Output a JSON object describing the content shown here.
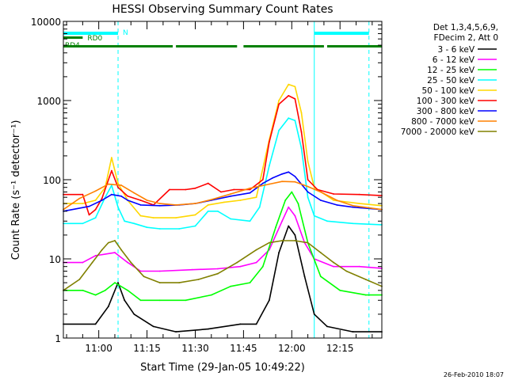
{
  "chart_data": {
    "type": "line",
    "title": "HESSI Observing Summary Count Rates",
    "xlabel": "Start Time (29-Jan-05 10:49:22)",
    "ylabel": "Count Rate (s⁻¹ detector⁻¹)",
    "y_scale": "log",
    "ylim": [
      1,
      10000
    ],
    "xlim_minutes_after_1049": [
      0,
      99
    ],
    "x_ticks": [
      {
        "label": "11:00",
        "minutes": 11
      },
      {
        "label": "11:15",
        "minutes": 26
      },
      {
        "label": "11:30",
        "minutes": 41
      },
      {
        "label": "11:45",
        "minutes": 56
      },
      {
        "label": "12:00",
        "minutes": 71
      },
      {
        "label": "12:15",
        "minutes": 86
      }
    ],
    "y_ticks": [
      {
        "label": "1",
        "value": 1
      },
      {
        "label": "10",
        "value": 10
      },
      {
        "label": "100",
        "value": 100
      },
      {
        "label": "1000",
        "value": 1000
      },
      {
        "label": "10000",
        "value": 10000
      }
    ],
    "legend": {
      "placement": "right",
      "header": [
        "Det 1,3,4,5,6,9,",
        "FDecim 2, Att 0"
      ]
    },
    "series": [
      {
        "name": "3 - 6 keV",
        "color": "#000000",
        "points": [
          [
            0,
            1.5
          ],
          [
            10,
            1.5
          ],
          [
            14,
            2.5
          ],
          [
            17,
            5
          ],
          [
            19,
            3
          ],
          [
            22,
            2
          ],
          [
            28,
            1.4
          ],
          [
            35,
            1.2
          ],
          [
            45,
            1.3
          ],
          [
            55,
            1.5
          ],
          [
            60,
            1.5
          ],
          [
            64,
            3
          ],
          [
            67,
            12
          ],
          [
            70,
            26
          ],
          [
            72,
            20
          ],
          [
            75,
            6
          ],
          [
            78,
            2
          ],
          [
            82,
            1.4
          ],
          [
            90,
            1.2
          ],
          [
            99,
            1.2
          ]
        ]
      },
      {
        "name": "6 - 12 keV",
        "color": "#ff00ff",
        "points": [
          [
            0,
            9
          ],
          [
            6,
            9
          ],
          [
            10,
            11
          ],
          [
            16,
            12
          ],
          [
            20,
            9
          ],
          [
            24,
            7
          ],
          [
            30,
            7
          ],
          [
            40,
            7.3
          ],
          [
            48,
            7.5
          ],
          [
            55,
            8
          ],
          [
            60,
            9
          ],
          [
            64,
            13
          ],
          [
            68,
            30
          ],
          [
            70,
            45
          ],
          [
            72,
            35
          ],
          [
            75,
            16
          ],
          [
            78,
            10
          ],
          [
            84,
            8
          ],
          [
            92,
            8
          ],
          [
            99,
            7.6
          ]
        ]
      },
      {
        "name": "12 - 25 keV",
        "color": "#00ff00",
        "points": [
          [
            0,
            4
          ],
          [
            6,
            4
          ],
          [
            10,
            3.5
          ],
          [
            13,
            4
          ],
          [
            16,
            5
          ],
          [
            20,
            4
          ],
          [
            24,
            3
          ],
          [
            30,
            3
          ],
          [
            38,
            3
          ],
          [
            46,
            3.5
          ],
          [
            52,
            4.5
          ],
          [
            58,
            5
          ],
          [
            62,
            8
          ],
          [
            66,
            25
          ],
          [
            69,
            55
          ],
          [
            71,
            70
          ],
          [
            73,
            50
          ],
          [
            76,
            16
          ],
          [
            80,
            6
          ],
          [
            86,
            4
          ],
          [
            94,
            3.5
          ],
          [
            99,
            3.5
          ]
        ]
      },
      {
        "name": "25 - 50 keV",
        "color": "#00ffff",
        "points": [
          [
            0,
            28
          ],
          [
            6,
            28
          ],
          [
            10,
            33
          ],
          [
            13,
            60
          ],
          [
            15,
            85
          ],
          [
            17,
            45
          ],
          [
            19,
            30
          ],
          [
            22,
            28
          ],
          [
            26,
            25
          ],
          [
            30,
            24
          ],
          [
            36,
            24
          ],
          [
            41,
            26
          ],
          [
            45,
            40
          ],
          [
            48,
            40
          ],
          [
            52,
            32
          ],
          [
            58,
            30
          ],
          [
            61,
            45
          ],
          [
            64,
            150
          ],
          [
            67,
            420
          ],
          [
            70,
            600
          ],
          [
            72,
            560
          ],
          [
            74,
            250
          ],
          [
            76,
            60
          ],
          [
            78,
            35
          ],
          [
            82,
            30
          ],
          [
            90,
            28
          ],
          [
            99,
            27
          ]
        ]
      },
      {
        "name": "50 - 100 keV",
        "color": "#ffd700",
        "points": [
          [
            0,
            50
          ],
          [
            6,
            50
          ],
          [
            10,
            55
          ],
          [
            13,
            80
          ],
          [
            15,
            190
          ],
          [
            17,
            90
          ],
          [
            20,
            55
          ],
          [
            24,
            35
          ],
          [
            28,
            33
          ],
          [
            35,
            33
          ],
          [
            41,
            36
          ],
          [
            45,
            48
          ],
          [
            50,
            52
          ],
          [
            55,
            55
          ],
          [
            60,
            60
          ],
          [
            64,
            320
          ],
          [
            67,
            1000
          ],
          [
            70,
            1600
          ],
          [
            72,
            1500
          ],
          [
            74,
            700
          ],
          [
            76,
            170
          ],
          [
            78,
            80
          ],
          [
            84,
            55
          ],
          [
            92,
            50
          ],
          [
            99,
            47
          ]
        ]
      },
      {
        "name": "100 - 300 keV",
        "color": "#ff0000",
        "points": [
          [
            0,
            65
          ],
          [
            6,
            65
          ],
          [
            8,
            36
          ],
          [
            10,
            42
          ],
          [
            12,
            58
          ],
          [
            15,
            130
          ],
          [
            17,
            80
          ],
          [
            20,
            62
          ],
          [
            24,
            55
          ],
          [
            28,
            48
          ],
          [
            33,
            75
          ],
          [
            38,
            75
          ],
          [
            41,
            78
          ],
          [
            45,
            90
          ],
          [
            49,
            70
          ],
          [
            53,
            75
          ],
          [
            58,
            75
          ],
          [
            62,
            100
          ],
          [
            64,
            300
          ],
          [
            67,
            900
          ],
          [
            70,
            1150
          ],
          [
            72,
            1050
          ],
          [
            74,
            400
          ],
          [
            76,
            100
          ],
          [
            79,
            75
          ],
          [
            84,
            66
          ],
          [
            92,
            65
          ],
          [
            99,
            63
          ]
        ]
      },
      {
        "name": "300 - 800 keV",
        "color": "#0000ff",
        "points": [
          [
            0,
            40
          ],
          [
            8,
            46
          ],
          [
            12,
            55
          ],
          [
            15,
            65
          ],
          [
            18,
            62
          ],
          [
            20,
            55
          ],
          [
            24,
            48
          ],
          [
            30,
            47
          ],
          [
            36,
            48
          ],
          [
            41,
            50
          ],
          [
            46,
            55
          ],
          [
            52,
            62
          ],
          [
            58,
            68
          ],
          [
            62,
            90
          ],
          [
            65,
            105
          ],
          [
            68,
            118
          ],
          [
            70,
            125
          ],
          [
            72,
            110
          ],
          [
            76,
            70
          ],
          [
            80,
            55
          ],
          [
            85,
            48
          ],
          [
            90,
            45
          ],
          [
            99,
            42
          ]
        ]
      },
      {
        "name": "800 - 7000 keV",
        "color": "#ff8000",
        "points": [
          [
            0,
            42
          ],
          [
            5,
            58
          ],
          [
            10,
            72
          ],
          [
            14,
            88
          ],
          [
            18,
            85
          ],
          [
            22,
            68
          ],
          [
            26,
            55
          ],
          [
            30,
            50
          ],
          [
            35,
            48
          ],
          [
            41,
            50
          ],
          [
            46,
            56
          ],
          [
            52,
            66
          ],
          [
            58,
            78
          ],
          [
            64,
            88
          ],
          [
            68,
            95
          ],
          [
            72,
            94
          ],
          [
            76,
            82
          ],
          [
            80,
            70
          ],
          [
            85,
            55
          ],
          [
            90,
            47
          ],
          [
            99,
            42
          ]
        ]
      },
      {
        "name": "7000 - 20000 keV",
        "color": "#808000",
        "points": [
          [
            0,
            4
          ],
          [
            5,
            5.5
          ],
          [
            9,
            9
          ],
          [
            12,
            13
          ],
          [
            14,
            16
          ],
          [
            16,
            17
          ],
          [
            18,
            13
          ],
          [
            21,
            9
          ],
          [
            25,
            6
          ],
          [
            30,
            5
          ],
          [
            36,
            5
          ],
          [
            42,
            5.5
          ],
          [
            48,
            6.5
          ],
          [
            54,
            9
          ],
          [
            60,
            13
          ],
          [
            64,
            16
          ],
          [
            68,
            17
          ],
          [
            72,
            17
          ],
          [
            76,
            16
          ],
          [
            80,
            12
          ],
          [
            84,
            9
          ],
          [
            88,
            7
          ],
          [
            94,
            5.5
          ],
          [
            99,
            4.5
          ]
        ]
      }
    ],
    "annotations": {
      "saa_bars": [
        {
          "label": "N",
          "color": "#00ffff",
          "start": 0,
          "end": 17
        },
        {
          "label": "",
          "color": "#00ffff",
          "start": 78,
          "end": 95
        }
      ],
      "state_bars": [
        {
          "label": "RD0",
          "color": "#008000",
          "start": 0,
          "end": 6
        },
        {
          "label": "RD4",
          "color": "#008000",
          "start": 0,
          "end": 34
        },
        {
          "label": "",
          "color": "#008000",
          "start": 35,
          "end": 54
        },
        {
          "label": "",
          "color": "#008000",
          "start": 56,
          "end": 81
        },
        {
          "label": "",
          "color": "#008000",
          "start": 82,
          "end": 99
        }
      ],
      "vertical_dashed": [
        17,
        95
      ],
      "vertical_solid": [
        0,
        78
      ]
    }
  },
  "footer_stamp": "26-Feb-2010 18:07"
}
